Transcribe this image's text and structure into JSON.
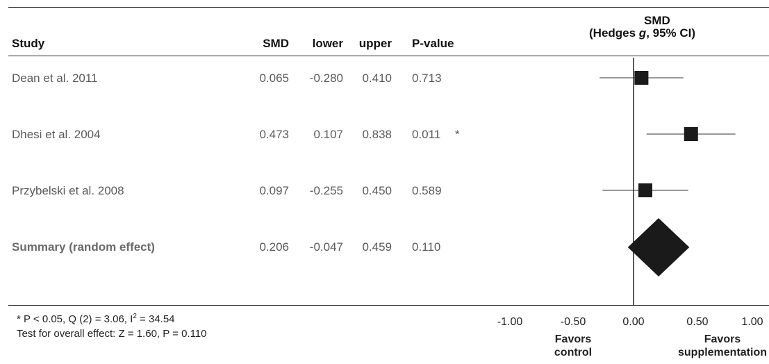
{
  "table": {
    "headers": {
      "study": "Study",
      "smd": "SMD",
      "lower": "lower",
      "upper": "upper",
      "pvalue": "P-value",
      "plot_line1": "SMD",
      "plot_line2_pre": "(Hedges ",
      "plot_line2_g": "g",
      "plot_line2_post": ", 95% CI)"
    },
    "rows": [
      {
        "study": "Dean et al. 2011",
        "smd": "0.065",
        "lower": "-0.280",
        "upper": "0.410",
        "pvalue": "0.713",
        "flag": ""
      },
      {
        "study": "Dhesi et al. 2004",
        "smd": "0.473",
        "lower": "0.107",
        "upper": "0.838",
        "pvalue": "0.011",
        "flag": "*"
      },
      {
        "study": "Przybelski et al. 2008",
        "smd": "0.097",
        "lower": "-0.255",
        "upper": "0.450",
        "pvalue": "0.589",
        "flag": ""
      }
    ],
    "summary": {
      "study": "Summary (random effect)",
      "smd": "0.206",
      "lower": "-0.047",
      "upper": "0.459",
      "pvalue": "0.110"
    }
  },
  "footnotes": {
    "line1_pre": "* P < 0.05, Q (2) = 3.06, I",
    "line1_sup": "2",
    "line1_post": " = 34.54",
    "line2": "Test for overall effect: Z = 1.60, P = 0.110"
  },
  "axis": {
    "ticks": [
      "-1.00",
      "-0.50",
      "0.00",
      "0.50",
      "1.00"
    ],
    "favors_left": [
      "Favors",
      "control"
    ],
    "favors_right": [
      "Favors",
      "supplementation"
    ]
  },
  "chart_data": {
    "type": "forest",
    "xlim": [
      -1.0,
      1.0
    ],
    "xticks": [
      -1.0,
      -0.5,
      0.0,
      0.5,
      1.0
    ],
    "studies": [
      {
        "name": "Dean et al. 2011",
        "estimate": 0.065,
        "lower": -0.28,
        "upper": 0.41
      },
      {
        "name": "Dhesi et al. 2004",
        "estimate": 0.473,
        "lower": 0.107,
        "upper": 0.838
      },
      {
        "name": "Przybelski et al. 2008",
        "estimate": 0.097,
        "lower": -0.255,
        "upper": 0.45
      }
    ],
    "summary": {
      "name": "Summary (random effect)",
      "estimate": 0.206,
      "lower": -0.047,
      "upper": 0.459
    },
    "colors": {
      "marker": "#1a1a1a",
      "line": "#333333"
    }
  }
}
